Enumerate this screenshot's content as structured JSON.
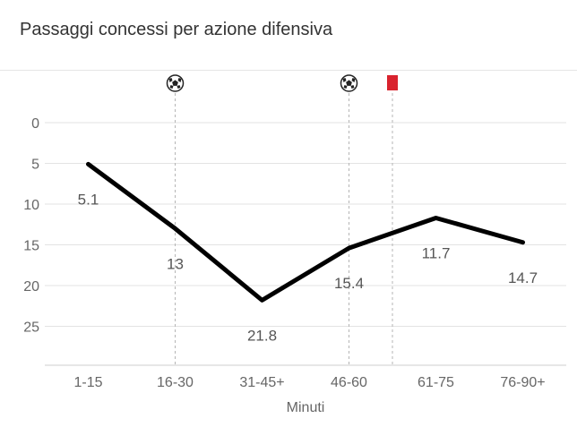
{
  "title": "Passaggi concessi per azione difensiva",
  "chart_data": {
    "type": "line",
    "categories": [
      "1-15",
      "16-30",
      "31-45+",
      "46-60",
      "61-75",
      "76-90+"
    ],
    "series": [
      {
        "values": [
          5.1,
          13,
          21.8,
          15.4,
          11.7,
          14.7
        ]
      }
    ],
    "data_labels": [
      "5.1",
      "13",
      "21.8",
      "15.4",
      "11.7",
      "14.7"
    ],
    "xlabel": "Minuti",
    "ylabel": "",
    "y_ticks": [
      "0",
      "5",
      "10",
      "15",
      "20",
      "25"
    ],
    "ylim": [
      0,
      30
    ],
    "y_inverted": true,
    "grid": true,
    "line_color": "#000000",
    "events": [
      {
        "type": "goal",
        "icon": "soccer-ball-icon",
        "x": 1.5
      },
      {
        "type": "goal",
        "icon": "soccer-ball-icon",
        "x": 3.5
      },
      {
        "type": "red-card",
        "icon": "red-card-icon",
        "x": 4,
        "color": "#d9232e"
      }
    ]
  }
}
